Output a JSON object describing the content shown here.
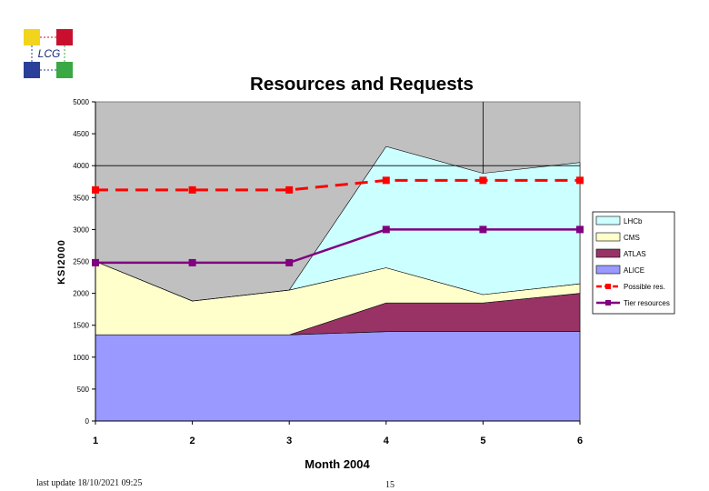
{
  "logo": {
    "text": "LCG",
    "colors": {
      "yellow": "#f2d41c",
      "red": "#c8102e",
      "blue": "#2a3f9a",
      "green": "#3aa843"
    }
  },
  "footer": {
    "update": "last update 18/10/2021 09:25",
    "page": "15"
  },
  "chart_data": {
    "type": "area",
    "title": "Resources and Requests",
    "xlabel": "Month 2004",
    "ylabel": "KSI2000",
    "x": [
      1,
      2,
      3,
      4,
      5,
      6
    ],
    "x_tick_labels": [
      "1",
      "2",
      "3",
      "4",
      "5",
      "6"
    ],
    "ylim": [
      0,
      5000
    ],
    "y_ticks": [
      0,
      500,
      1000,
      1500,
      2000,
      2500,
      3000,
      3500,
      4000,
      4500,
      5000
    ],
    "y_tick_labels": [
      "0",
      "500",
      "1000",
      "1500",
      "2000",
      "2500",
      "3000",
      "3500",
      "4000",
      "4500",
      "5000"
    ],
    "stacked": true,
    "series": [
      {
        "name": "ALICE",
        "kind": "area",
        "color": "#9999ff",
        "values": [
          1350,
          1350,
          1350,
          1400,
          1400,
          1400
        ]
      },
      {
        "name": "ATLAS",
        "kind": "area",
        "color": "#993366",
        "values": [
          0,
          0,
          0,
          450,
          450,
          600
        ]
      },
      {
        "name": "CMS",
        "kind": "area",
        "color": "#ffffcc",
        "values": [
          1150,
          530,
          700,
          550,
          130,
          150
        ]
      },
      {
        "name": "LHCb",
        "kind": "area",
        "color": "#ccffff",
        "values": [
          0,
          0,
          0,
          1900,
          1900,
          1900
        ]
      },
      {
        "name": "Possible res.",
        "kind": "line",
        "style": "dashed",
        "color": "#ff0000",
        "values": [
          3620,
          3620,
          3620,
          3770,
          3770,
          3770
        ]
      },
      {
        "name": "Tier resources",
        "kind": "line",
        "style": "solid",
        "color": "#800080",
        "values": [
          2480,
          2480,
          2480,
          3000,
          3000,
          3000
        ]
      }
    ],
    "legend_order": [
      "LHCb",
      "CMS",
      "ATLAS",
      "ALICE",
      "Possible res.",
      "Tier resources"
    ],
    "legend_position": "right",
    "plot_background": "#c0c0c0",
    "gridlines": [
      4000
    ],
    "vertical_gridlines": [
      5
    ]
  }
}
